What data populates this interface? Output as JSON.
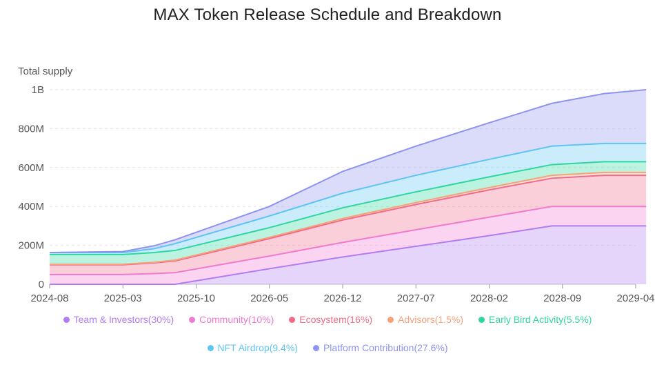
{
  "chart_data": {
    "type": "area",
    "stacked": true,
    "title": "MAX Token Release Schedule and Breakdown",
    "ylabel": "Total supply",
    "xlabel": "",
    "x": [
      "2024-08",
      "2025-03",
      "2025-06",
      "2025-08",
      "2026-05",
      "2026-12",
      "2027-07",
      "2028-02",
      "2028-08",
      "2029-01",
      "2029-05"
    ],
    "x_ticks": [
      "2024-08",
      "2025-03",
      "2025-10",
      "2026-05",
      "2026-12",
      "2027-07",
      "2028-02",
      "2028-09",
      "2029-04"
    ],
    "y_ticks": [
      "0",
      "200M",
      "400M",
      "600M",
      "800M",
      "1B"
    ],
    "ylim": [
      0,
      1000
    ],
    "grid": true,
    "legend_position": "bottom",
    "series": [
      {
        "name": "Team & Investors(30%)",
        "color": "#b07cf0",
        "values": [
          0,
          0,
          0,
          0,
          80,
          140,
          195,
          250,
          300,
          300,
          300
        ]
      },
      {
        "name": "Community(10%)",
        "color": "#f07ad0",
        "values": [
          50,
          50,
          55,
          60,
          65,
          75,
          85,
          95,
          100,
          100,
          100
        ]
      },
      {
        "name": "Ecosystem(16%)",
        "color": "#f06b8a",
        "values": [
          50,
          50,
          55,
          60,
          90,
          115,
          130,
          140,
          145,
          160,
          160
        ]
      },
      {
        "name": "Advisors(1.5%)",
        "color": "#f7a07a",
        "values": [
          3,
          3,
          3,
          4,
          6,
          8,
          10,
          12,
          15,
          15,
          15
        ]
      },
      {
        "name": "Early Bird Activity(5.5%)",
        "color": "#2ed6a0",
        "values": [
          50,
          50,
          50,
          50,
          50,
          55,
          55,
          55,
          55,
          55,
          55
        ]
      },
      {
        "name": "NFT Airdrop(9.4%)",
        "color": "#5ec4f2",
        "values": [
          10,
          10,
          20,
          35,
          60,
          75,
          85,
          90,
          95,
          94,
          94
        ]
      },
      {
        "name": "Platform Contribution(27.6%)",
        "color": "#8e93ee",
        "values": [
          0,
          5,
          15,
          20,
          49,
          112,
          150,
          188,
          220,
          256,
          276
        ]
      }
    ]
  }
}
